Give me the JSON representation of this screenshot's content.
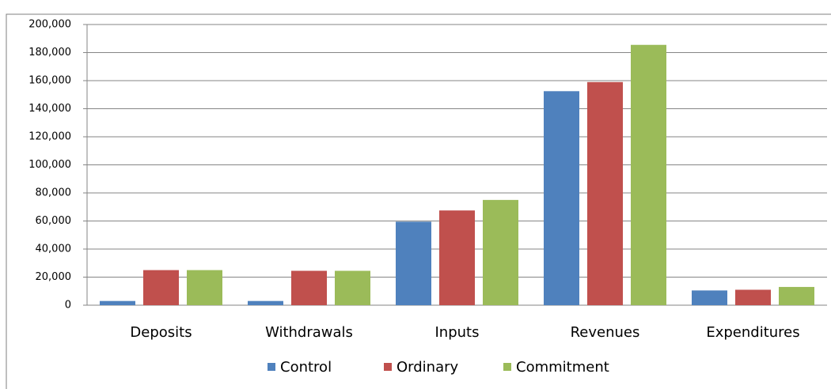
{
  "chart_data": {
    "type": "bar",
    "categories": [
      "Deposits",
      "Withdrawals",
      "Inputs",
      "Revenues",
      "Expenditures"
    ],
    "series": [
      {
        "name": "Control",
        "color": "#4f81bd",
        "values": [
          3000,
          3000,
          59500,
          152500,
          10500
        ]
      },
      {
        "name": "Ordinary",
        "color": "#c0504d",
        "values": [
          25000,
          24500,
          67500,
          159000,
          11000
        ]
      },
      {
        "name": "Commitment",
        "color": "#9bbb59",
        "values": [
          25000,
          24500,
          75000,
          185500,
          13000
        ]
      }
    ],
    "ylim": [
      0,
      200000
    ],
    "yticks": [
      0,
      {
        "value": 20000,
        "label": "20,000"
      },
      {
        "value": 40000,
        "label": "40,000"
      },
      {
        "value": 60000,
        "label": "60,000"
      },
      {
        "value": 80000,
        "label": "80,000"
      },
      {
        "value": 100000,
        "label": "100,000"
      },
      {
        "value": 120000,
        "label": "120,000"
      },
      {
        "value": 140000,
        "label": "140,000"
      },
      {
        "value": 160000,
        "label": "160,000"
      },
      {
        "value": 180000,
        "label": "180,000"
      },
      {
        "value": 200000,
        "label": "200,000"
      }
    ],
    "grid": true,
    "legend": "bottom"
  }
}
